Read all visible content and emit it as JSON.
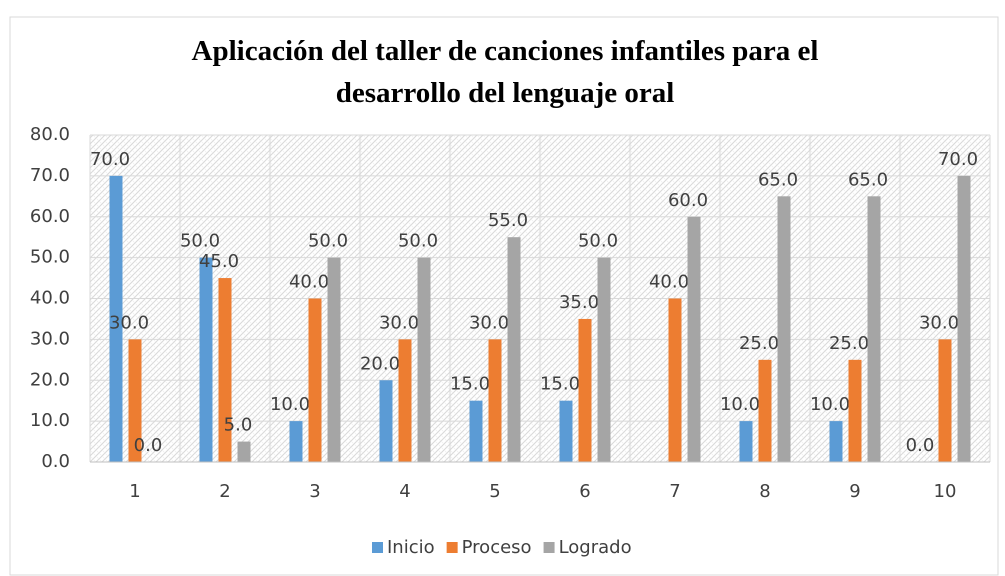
{
  "chart_data": {
    "type": "bar",
    "title": "Aplicación del taller de canciones infantiles para el desarrollo del lenguaje oral",
    "categories": [
      "1",
      "2",
      "3",
      "4",
      "5",
      "6",
      "7",
      "8",
      "9",
      "10"
    ],
    "series": [
      {
        "name": "Inicio",
        "color": "#5b9bd5",
        "values": [
          70,
          50,
          10,
          20,
          15,
          15,
          null,
          10,
          10,
          0
        ],
        "value_labels": [
          "70.0",
          "50.0",
          "10.0",
          "20.0",
          "15.0",
          "15.0",
          null,
          "10.0",
          "10.0",
          "0.0"
        ]
      },
      {
        "name": "Proceso",
        "color": "#ed7d31",
        "values": [
          30,
          45,
          40,
          30,
          30,
          35,
          40,
          25,
          25,
          30
        ],
        "value_labels": [
          "30.0",
          "45.0",
          "40.0",
          "30.0",
          "30.0",
          "35.0",
          "40.0",
          "25.0",
          "25.0",
          "30.0"
        ]
      },
      {
        "name": "Logrado",
        "color": "#a5a5a5",
        "values": [
          0,
          5,
          50,
          50,
          55,
          50,
          60,
          65,
          65,
          70
        ],
        "value_labels": [
          "0.0",
          "5.0",
          "50.0",
          "50.0",
          "55.0",
          "50.0",
          "60.0",
          "65.0",
          "65.0",
          "70.0"
        ]
      }
    ],
    "ylim": [
      0,
      80
    ],
    "yticks": [
      {
        "value": 0,
        "label": "0.0"
      },
      {
        "value": 10,
        "label": "10.0"
      },
      {
        "value": 20,
        "label": "20.0"
      },
      {
        "value": 30,
        "label": "30.0"
      },
      {
        "value": 40,
        "label": "40.0"
      },
      {
        "value": 50,
        "label": "50.0"
      },
      {
        "value": 60,
        "label": "60.0"
      },
      {
        "value": 70,
        "label": "70.0"
      },
      {
        "value": 80,
        "label": "80.0"
      }
    ],
    "grid": true,
    "legend": "bottom"
  }
}
